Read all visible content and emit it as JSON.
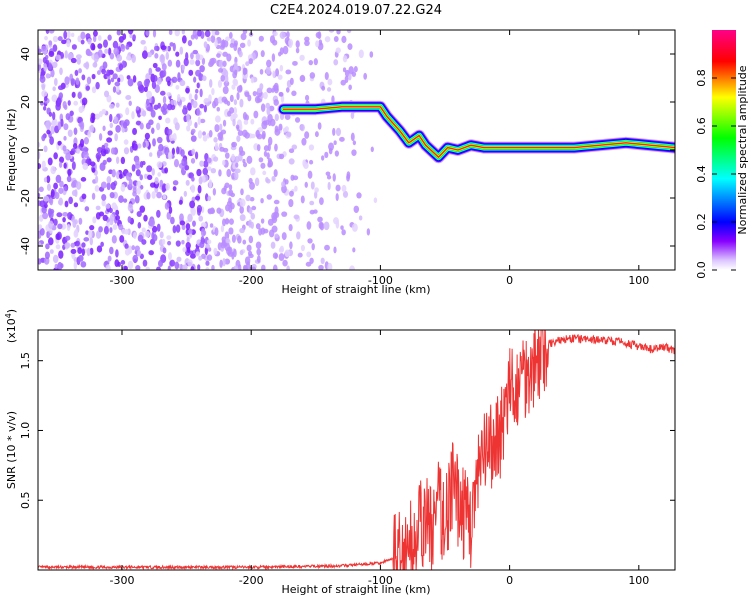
{
  "figure_title": "C2E4.2024.019.07.22.G24",
  "chart_data": [
    {
      "type": "heatmap",
      "name": "spectrogram",
      "xlabel": "Height of straight line (km)",
      "ylabel": "Frequency (Hz)",
      "xlim": [
        -365,
        128
      ],
      "ylim": [
        -50,
        50
      ],
      "xticks": [
        -300,
        -200,
        -100,
        0,
        100
      ],
      "yticks": [
        -40,
        -20,
        0,
        20,
        40
      ],
      "colorbar": {
        "label": "Normalized spectral amplitude",
        "range": [
          0,
          1
        ],
        "ticks": [
          0.0,
          0.2,
          0.4,
          0.6,
          0.8
        ],
        "tick_labels": [
          "0.0",
          "0.2",
          "0.4",
          "0.6",
          "0.8"
        ],
        "colors": [
          "#ffffff",
          "#8800ff",
          "#0000ff",
          "#00ffff",
          "#00ff00",
          "#ffff00",
          "#ff0000",
          "#ff0088"
        ]
      },
      "signal_track": [
        {
          "x": -175,
          "y": 17
        },
        {
          "x": -150,
          "y": 17
        },
        {
          "x": -130,
          "y": 18
        },
        {
          "x": -110,
          "y": 18
        },
        {
          "x": -100,
          "y": 18
        },
        {
          "x": -95,
          "y": 14
        },
        {
          "x": -85,
          "y": 8
        },
        {
          "x": -78,
          "y": 3
        },
        {
          "x": -70,
          "y": 6
        },
        {
          "x": -65,
          "y": 2
        },
        {
          "x": -55,
          "y": -3
        },
        {
          "x": -48,
          "y": 1
        },
        {
          "x": -40,
          "y": 0
        },
        {
          "x": -30,
          "y": 2
        },
        {
          "x": -20,
          "y": 1
        },
        {
          "x": 0,
          "y": 1
        },
        {
          "x": 50,
          "y": 1
        },
        {
          "x": 90,
          "y": 3
        },
        {
          "x": 128,
          "y": 1
        }
      ],
      "noise_region_x": [
        -365,
        -100
      ]
    },
    {
      "type": "line",
      "name": "snr",
      "xlabel": "Height of straight line (km)",
      "ylabel": "SNR (10 * v/v)",
      "y_multiplier": "(x10^4)",
      "xlim": [
        -365,
        128
      ],
      "ylim": [
        0,
        1.72
      ],
      "xticks": [
        -300,
        -200,
        -100,
        0,
        100
      ],
      "yticks": [
        0.5,
        1.0,
        1.5
      ],
      "ytick_labels": [
        "0.5",
        "1.0",
        "1.5"
      ],
      "color": "#ee3333",
      "series": [
        {
          "x": [
            -365,
            -300,
            -200,
            -130,
            -100,
            -85,
            -75,
            -65,
            -60,
            -55,
            -50,
            -45,
            -40,
            -35,
            -30,
            -25,
            -20,
            -15,
            -10,
            -5,
            0,
            5,
            10,
            15,
            20,
            25,
            30,
            40,
            50,
            60,
            70,
            80,
            90,
            100,
            110,
            120,
            128
          ],
          "y": [
            0.02,
            0.02,
            0.02,
            0.03,
            0.05,
            0.1,
            0.2,
            0.35,
            0.3,
            0.45,
            0.35,
            0.6,
            0.5,
            0.4,
            0.35,
            0.6,
            0.8,
            0.85,
            0.95,
            1.05,
            1.25,
            1.3,
            1.4,
            1.45,
            1.5,
            1.58,
            1.62,
            1.65,
            1.66,
            1.65,
            1.65,
            1.64,
            1.63,
            1.6,
            1.58,
            1.6,
            1.57
          ]
        }
      ]
    }
  ]
}
